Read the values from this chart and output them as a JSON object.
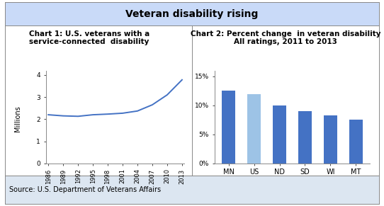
{
  "title": "Veteran disability rising",
  "title_fontsize": 10,
  "title_bg_color": "#c9daf8",
  "source_text": "Source: U.S. Department of Veterans Affairs",
  "source_bg_color": "#dce6f1",
  "source_fontsize": 7,
  "chart1_title_line1": "Chart 1: U.S. veterans with a",
  "chart1_title_line2": "service-connected  disability",
  "chart1_title_fontsize": 7.5,
  "chart1_ylabel": "Millions",
  "chart1_ylabel_fontsize": 7,
  "chart1_years": [
    1986,
    1989,
    1992,
    1995,
    1998,
    2001,
    2004,
    2007,
    2010,
    2013
  ],
  "chart1_values": [
    2.2,
    2.15,
    2.13,
    2.2,
    2.23,
    2.27,
    2.37,
    2.65,
    3.1,
    3.78
  ],
  "chart1_line_color": "#4472c4",
  "chart1_ylim": [
    0,
    4.2
  ],
  "chart1_yticks": [
    0,
    1,
    2,
    3,
    4
  ],
  "chart1_tick_fontsize": 6.5,
  "chart2_title_line1": "Chart 2: Percent change  in veteran disability",
  "chart2_title_line2": "All ratings, 2011 to 2013",
  "chart2_title_fontsize": 7.5,
  "chart2_categories": [
    "MN",
    "US",
    "ND",
    "SD",
    "WI",
    "MT"
  ],
  "chart2_values": [
    12.5,
    11.9,
    10.0,
    9.0,
    8.3,
    7.5
  ],
  "chart2_colors": [
    "#4472c4",
    "#9dc3e6",
    "#4472c4",
    "#4472c4",
    "#4472c4",
    "#4472c4"
  ],
  "chart2_ylim": [
    0,
    16
  ],
  "chart2_yticks": [
    0,
    5,
    10,
    15
  ],
  "chart2_ytick_labels": [
    "0%",
    "5%",
    "10%",
    "15%"
  ],
  "chart2_tick_fontsize": 6.5,
  "chart2_cat_fontsize": 7,
  "outer_border_color": "#888888",
  "divider_color": "#888888",
  "bg_color": "#ffffff"
}
